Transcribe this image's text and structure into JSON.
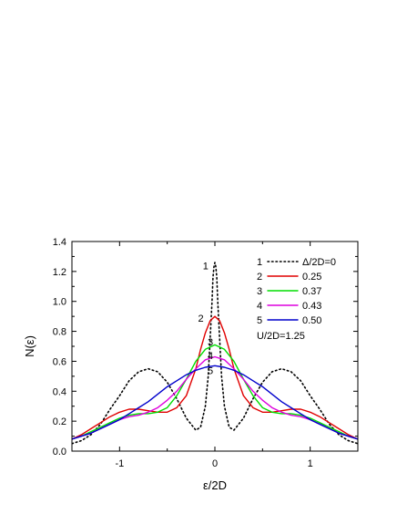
{
  "chart_data": {
    "type": "line",
    "xlabel": "ε/2D",
    "ylabel": "N(ε)",
    "xlim": [
      -1.5,
      1.5
    ],
    "ylim": [
      0.0,
      1.4
    ],
    "xticks": [
      -1,
      0,
      1
    ],
    "xtick_labels": [
      "-1",
      "0",
      "1"
    ],
    "yticks": [
      0.0,
      0.2,
      0.4,
      0.6,
      0.8,
      1.0,
      1.2,
      1.4
    ],
    "ytick_labels": [
      "0.0",
      "0.2",
      "0.4",
      "0.6",
      "0.8",
      "1.0",
      "1.2",
      "1.4"
    ],
    "grid": false,
    "legend_position": "top-right",
    "annotation": "U/2D=1.25",
    "series": [
      {
        "name": "Δ/2D=0",
        "number": "1",
        "legend_value": "Δ/2D=0",
        "color": "#000000",
        "dashed": true,
        "x": [
          -1.5,
          -1.4,
          -1.3,
          -1.2,
          -1.1,
          -1.0,
          -0.9,
          -0.8,
          -0.7,
          -0.6,
          -0.5,
          -0.4,
          -0.3,
          -0.2,
          -0.15,
          -0.1,
          -0.07,
          -0.05,
          -0.03,
          -0.02,
          -0.01,
          0.0,
          0.01,
          0.02,
          0.03,
          0.05,
          0.07,
          0.1,
          0.15,
          0.2,
          0.3,
          0.4,
          0.5,
          0.6,
          0.7,
          0.8,
          0.9,
          1.0,
          1.1,
          1.2,
          1.3,
          1.4,
          1.5
        ],
        "y": [
          0.05,
          0.07,
          0.11,
          0.18,
          0.28,
          0.37,
          0.47,
          0.53,
          0.55,
          0.53,
          0.46,
          0.35,
          0.22,
          0.14,
          0.16,
          0.3,
          0.5,
          0.75,
          1.0,
          1.16,
          1.23,
          1.26,
          1.23,
          1.16,
          1.0,
          0.75,
          0.5,
          0.3,
          0.16,
          0.14,
          0.22,
          0.35,
          0.46,
          0.53,
          0.55,
          0.53,
          0.47,
          0.37,
          0.28,
          0.18,
          0.11,
          0.07,
          0.05
        ]
      },
      {
        "name": "0.25",
        "number": "2",
        "legend_value": "0.25",
        "color": "#e00000",
        "dashed": false,
        "x": [
          -1.5,
          -1.4,
          -1.3,
          -1.2,
          -1.1,
          -1.0,
          -0.9,
          -0.8,
          -0.7,
          -0.6,
          -0.5,
          -0.4,
          -0.3,
          -0.2,
          -0.15,
          -0.1,
          -0.05,
          0.0,
          0.05,
          0.1,
          0.15,
          0.2,
          0.3,
          0.4,
          0.5,
          0.6,
          0.7,
          0.8,
          0.9,
          1.0,
          1.1,
          1.2,
          1.3,
          1.4,
          1.5
        ],
        "y": [
          0.08,
          0.11,
          0.15,
          0.19,
          0.23,
          0.26,
          0.28,
          0.28,
          0.27,
          0.26,
          0.26,
          0.29,
          0.37,
          0.55,
          0.68,
          0.79,
          0.87,
          0.9,
          0.87,
          0.79,
          0.68,
          0.55,
          0.37,
          0.29,
          0.26,
          0.26,
          0.27,
          0.28,
          0.28,
          0.26,
          0.23,
          0.19,
          0.15,
          0.11,
          0.08
        ]
      },
      {
        "name": "0.37",
        "number": "3",
        "legend_value": "0.37",
        "color": "#00dd00",
        "dashed": false,
        "x": [
          -1.5,
          -1.4,
          -1.3,
          -1.2,
          -1.1,
          -1.0,
          -0.9,
          -0.8,
          -0.7,
          -0.6,
          -0.5,
          -0.4,
          -0.3,
          -0.2,
          -0.1,
          0.0,
          0.1,
          0.2,
          0.3,
          0.4,
          0.5,
          0.6,
          0.7,
          0.8,
          0.9,
          1.0,
          1.1,
          1.2,
          1.3,
          1.4,
          1.5
        ],
        "y": [
          0.08,
          0.1,
          0.13,
          0.16,
          0.19,
          0.22,
          0.24,
          0.25,
          0.25,
          0.26,
          0.29,
          0.37,
          0.48,
          0.6,
          0.68,
          0.71,
          0.68,
          0.6,
          0.48,
          0.37,
          0.29,
          0.26,
          0.25,
          0.25,
          0.24,
          0.22,
          0.19,
          0.16,
          0.13,
          0.1,
          0.08
        ]
      },
      {
        "name": "0.43",
        "number": "4",
        "legend_value": "0.43",
        "color": "#dd00dd",
        "dashed": false,
        "x": [
          -1.5,
          -1.4,
          -1.3,
          -1.2,
          -1.1,
          -1.0,
          -0.9,
          -0.8,
          -0.7,
          -0.6,
          -0.5,
          -0.4,
          -0.3,
          -0.2,
          -0.1,
          0.0,
          0.1,
          0.2,
          0.3,
          0.4,
          0.5,
          0.6,
          0.7,
          0.8,
          0.9,
          1.0,
          1.1,
          1.2,
          1.3,
          1.4,
          1.5
        ],
        "y": [
          0.08,
          0.1,
          0.12,
          0.15,
          0.18,
          0.21,
          0.23,
          0.24,
          0.26,
          0.29,
          0.34,
          0.4,
          0.48,
          0.55,
          0.61,
          0.63,
          0.61,
          0.55,
          0.48,
          0.4,
          0.34,
          0.29,
          0.26,
          0.24,
          0.23,
          0.21,
          0.18,
          0.15,
          0.12,
          0.1,
          0.08
        ]
      },
      {
        "name": "0.50",
        "number": "5",
        "legend_value": "0.50",
        "color": "#0000cc",
        "dashed": false,
        "x": [
          -1.5,
          -1.4,
          -1.3,
          -1.2,
          -1.1,
          -1.0,
          -0.9,
          -0.8,
          -0.7,
          -0.6,
          -0.5,
          -0.4,
          -0.3,
          -0.2,
          -0.1,
          0.0,
          0.1,
          0.2,
          0.3,
          0.4,
          0.5,
          0.6,
          0.7,
          0.8,
          0.9,
          1.0,
          1.1,
          1.2,
          1.3,
          1.4,
          1.5
        ],
        "y": [
          0.08,
          0.1,
          0.12,
          0.15,
          0.18,
          0.21,
          0.25,
          0.29,
          0.33,
          0.38,
          0.43,
          0.47,
          0.51,
          0.54,
          0.56,
          0.57,
          0.56,
          0.54,
          0.51,
          0.47,
          0.43,
          0.38,
          0.33,
          0.29,
          0.25,
          0.21,
          0.18,
          0.15,
          0.12,
          0.1,
          0.08
        ]
      }
    ],
    "curve_labels": [
      {
        "text": "1",
        "x": -0.05,
        "y": 1.24
      },
      {
        "text": "2",
        "x": -0.1,
        "y": 0.89
      },
      {
        "text": "3",
        "x": 0.0,
        "y": 0.73
      },
      {
        "text": "4",
        "x": 0.0,
        "y": 0.64
      },
      {
        "text": "5",
        "x": 0.0,
        "y": 0.54
      }
    ]
  }
}
